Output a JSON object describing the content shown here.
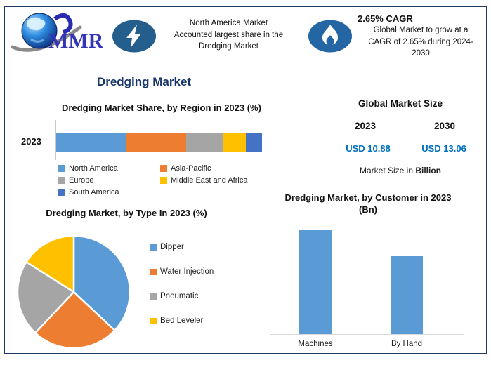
{
  "colors": {
    "frame": "#1F3864",
    "title_navy": "#17356B",
    "value_blue": "#0070C0",
    "bolt_circle": "#235E8C",
    "flame_circle": "#2366A3",
    "axis_line": "#C9C9C9",
    "series_blue": "#5B9BD5",
    "series_orange": "#ED7D31",
    "series_gray": "#A5A5A5",
    "series_yellow": "#FFC000",
    "series_dark_blue": "#4472C4"
  },
  "header": {
    "logo_text": "MMR",
    "callout_left": {
      "icon": "lightning-bolt",
      "text": "North America Market\nAccounted largest share in the\nDredging Market"
    },
    "callout_right": {
      "icon": "flame",
      "headline": "2.65% CAGR",
      "text": "Global Market to grow at a\nCAGR of 2.65% during 2024-\n2030"
    }
  },
  "page_title": "Dredging Market",
  "market_size_panel": {
    "title": "Global Market Size",
    "columns": [
      {
        "year": "2023",
        "value": "USD 10.88"
      },
      {
        "year": "2030",
        "value": "USD 13.06"
      }
    ],
    "caption_prefix": "Market Size in ",
    "caption_bold": "Billion"
  },
  "chart_data": [
    {
      "type": "bar",
      "variant": "horizontal-stacked",
      "title": "Dredging Market Share, by Region in 2023 (%)",
      "categories": [
        "2023"
      ],
      "unit": "%",
      "xlim": [
        0,
        100
      ],
      "grid": false,
      "legend_position": "bottom",
      "series": [
        {
          "name": "North America",
          "value": 34,
          "color": "#5B9BD5"
        },
        {
          "name": "Asia-Pacific",
          "value": 29,
          "color": "#ED7D31"
        },
        {
          "name": "Europe",
          "value": 18,
          "color": "#A5A5A5"
        },
        {
          "name": "Middle East and Africa",
          "value": 11,
          "color": "#FFC000"
        },
        {
          "name": "South America",
          "value": 8,
          "color": "#4472C4"
        }
      ]
    },
    {
      "type": "pie",
      "title": "Dredging Market, by Type In 2023 (%)",
      "unit": "%",
      "start_angle_deg": 0,
      "direction": "clockwise",
      "legend_position": "right",
      "slices": [
        {
          "name": "Dipper",
          "value": 37,
          "color": "#5B9BD5"
        },
        {
          "name": "Water Injection",
          "value": 25,
          "color": "#ED7D31"
        },
        {
          "name": "Pneumatic",
          "value": 22,
          "color": "#A5A5A5"
        },
        {
          "name": "Bed Leveler",
          "value": 16,
          "color": "#FFC000"
        }
      ]
    },
    {
      "type": "bar",
      "variant": "vertical",
      "title": "Dredging Market, by Customer in 2023 (Bn)",
      "title_lines": [
        "Dredging Market, by Customer in 2023",
        "(Bn)"
      ],
      "categories": [
        "Machines",
        "By Hand"
      ],
      "values": [
        6.2,
        4.6
      ],
      "ylim": [
        0,
        6.5
      ],
      "grid": false,
      "bar_color": "#5B9BD5"
    }
  ]
}
